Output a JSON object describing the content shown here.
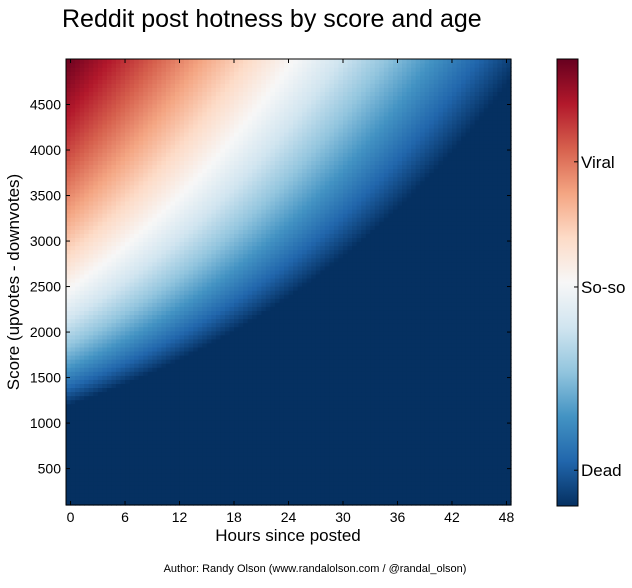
{
  "chart_data": {
    "type": "heatmap",
    "title": "Reddit post hotness by score and age",
    "xlabel": "Hours since posted",
    "ylabel": "Score (upvotes - downvotes)",
    "xlim": [
      -0.5,
      48.5
    ],
    "ylim": [
      100,
      5000
    ],
    "x_ticks": [
      0,
      6,
      12,
      18,
      24,
      30,
      36,
      42,
      48
    ],
    "y_ticks": [
      500,
      1000,
      1500,
      2000,
      2500,
      3000,
      3500,
      4000,
      4500
    ],
    "colormap": "RdBu_r",
    "colorbar": {
      "ticks": [
        {
          "label": "Viral",
          "position": 0.77
        },
        {
          "label": "So-so",
          "position": 0.49
        },
        {
          "label": "Dead",
          "position": 0.08
        }
      ]
    },
    "grid": false,
    "credit": "Author: Randy Olson (www.randalolson.com / @randal_olson)"
  },
  "colors": {
    "cmap_stops": [
      "#053061",
      "#2166ac",
      "#4393c3",
      "#92c5de",
      "#d1e5f0",
      "#f7f7f7",
      "#fddbc7",
      "#f4a582",
      "#d6604d",
      "#b2182b",
      "#67001f"
    ]
  }
}
